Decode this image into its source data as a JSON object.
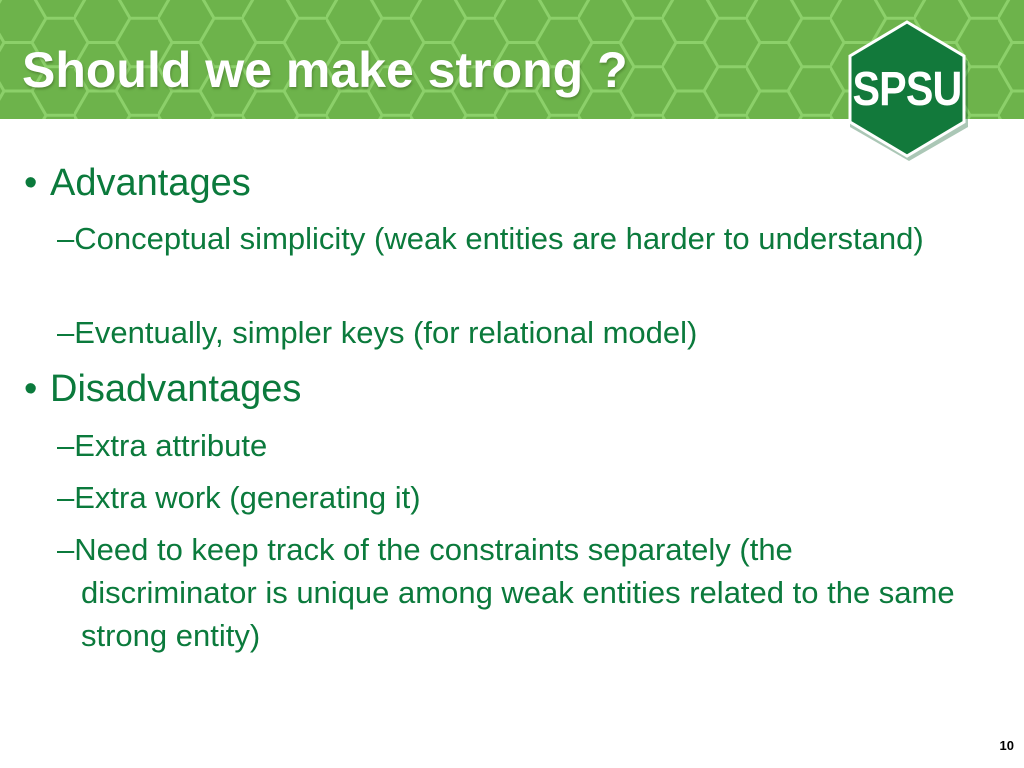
{
  "slide": {
    "title": "Should we make strong ?",
    "logo_text": "SPSU",
    "page_number": "10",
    "bullet_marker": "•",
    "colors": {
      "header_green": "#6db34b",
      "hex_lines": "#8cd06a",
      "text_green": "#0b7a3c",
      "logo_green": "#12793b"
    },
    "sections": [
      {
        "heading": "Advantages",
        "items": [
          "–Conceptual simplicity (weak entities are harder to understand)",
          "–Eventually, simpler keys (for relational model)"
        ]
      },
      {
        "heading": "Disadvantages",
        "items": [
          "–Extra attribute",
          "–Extra work (generating it)",
          "–Need to keep track of the constraints separately (the discriminator is unique among weak entities related to the same strong entity)"
        ]
      }
    ]
  }
}
